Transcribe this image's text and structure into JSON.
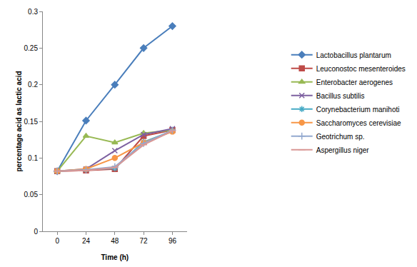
{
  "chart_data": {
    "type": "line",
    "x_label": "Time (h)",
    "y_label": "percentage acid as lactic acid",
    "categories": [
      "0",
      "24",
      "48",
      "72",
      "96"
    ],
    "ylim": [
      0,
      0.3
    ],
    "yticks": [
      0,
      0.05,
      0.1,
      0.15,
      0.2,
      0.25,
      0.3
    ],
    "grid": false,
    "legend": "right",
    "series": [
      {
        "name": "Lactobacillus plantarum",
        "color": "#4a7ebb",
        "marker": "diamond",
        "values": [
          0.082,
          0.151,
          0.2,
          0.25,
          0.28
        ]
      },
      {
        "name": "Leuconostoc mesenteroides",
        "color": "#be4b48",
        "marker": "square",
        "values": [
          0.082,
          0.083,
          0.085,
          0.13,
          0.138
        ]
      },
      {
        "name": "Enterobacter aerogenes",
        "color": "#98b954",
        "marker": "triangle-up",
        "values": [
          0.082,
          0.13,
          0.121,
          0.134,
          0.138
        ]
      },
      {
        "name": "Bacillus subtilis",
        "color": "#7d60a0",
        "marker": "x-thin-open",
        "values": [
          0.082,
          0.085,
          0.11,
          0.132,
          0.14
        ]
      },
      {
        "name": "Corynebacterium manihoti",
        "color": "#46aac5",
        "marker": "asterisk-open",
        "values": [
          0.082,
          0.084,
          0.086,
          0.122,
          0.137
        ]
      },
      {
        "name": "Saccharomyces cerevisiae",
        "color": "#f79646",
        "marker": "circle",
        "values": [
          0.082,
          0.085,
          0.1,
          0.121,
          0.136
        ]
      },
      {
        "name": "Geotrichum sp.",
        "color": "#93a9cf",
        "marker": "cross-thin-open",
        "values": [
          0.082,
          0.084,
          0.088,
          0.12,
          0.138
        ]
      },
      {
        "name": "Aspergillus niger",
        "color": "#d99795",
        "marker": "line-ew-open",
        "values": [
          0.082,
          0.083,
          0.087,
          0.118,
          0.137
        ]
      }
    ]
  }
}
